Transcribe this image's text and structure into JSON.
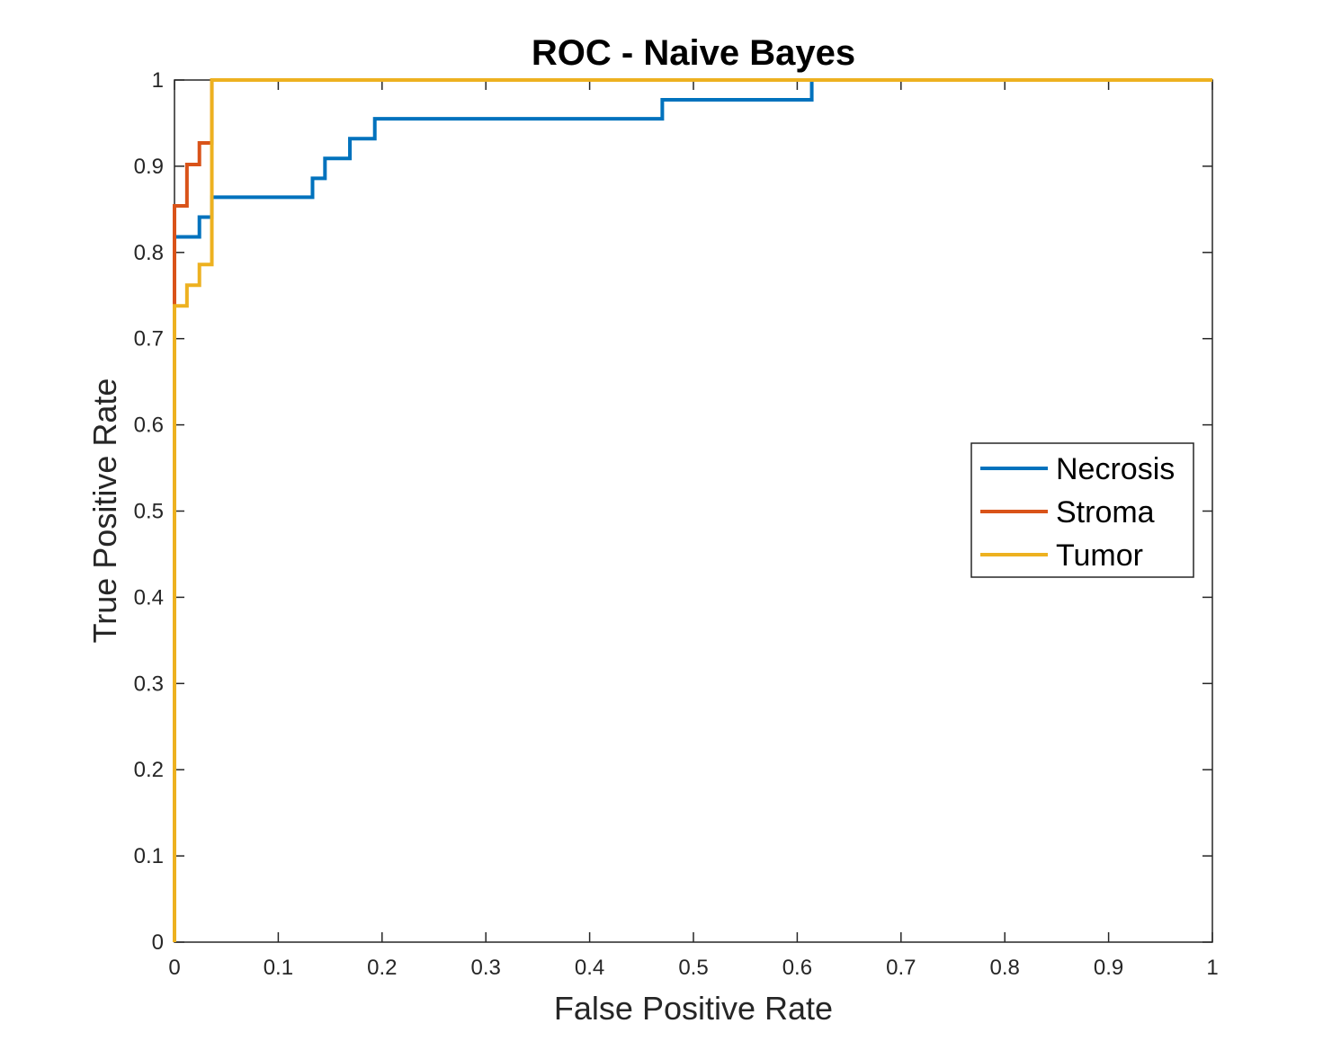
{
  "chart_data": {
    "type": "line",
    "title": "ROC - Naive Bayes",
    "xlabel": "False Positive Rate",
    "ylabel": "True Positive Rate",
    "xlim": [
      0,
      1
    ],
    "ylim": [
      0,
      1
    ],
    "xticks": [
      "0",
      "0.1",
      "0.2",
      "0.3",
      "0.4",
      "0.5",
      "0.6",
      "0.7",
      "0.8",
      "0.9",
      "1"
    ],
    "yticks": [
      "0",
      "0.1",
      "0.2",
      "0.3",
      "0.4",
      "0.5",
      "0.6",
      "0.7",
      "0.8",
      "0.9",
      "1"
    ],
    "grid": false,
    "legend_position": "right",
    "series": [
      {
        "name": "Necrosis",
        "color": "#0072BD",
        "points": [
          [
            0,
            0
          ],
          [
            0,
            0.818
          ],
          [
            0.024,
            0.818
          ],
          [
            0.024,
            0.841
          ],
          [
            0.036,
            0.841
          ],
          [
            0.036,
            0.864
          ],
          [
            0.133,
            0.864
          ],
          [
            0.133,
            0.886
          ],
          [
            0.145,
            0.886
          ],
          [
            0.145,
            0.909
          ],
          [
            0.169,
            0.909
          ],
          [
            0.169,
            0.932
          ],
          [
            0.193,
            0.932
          ],
          [
            0.193,
            0.955
          ],
          [
            0.47,
            0.955
          ],
          [
            0.47,
            0.977
          ],
          [
            0.614,
            0.977
          ],
          [
            0.614,
            1
          ],
          [
            1,
            1
          ]
        ]
      },
      {
        "name": "Stroma",
        "color": "#D95319",
        "points": [
          [
            0,
            0
          ],
          [
            0,
            0.854
          ],
          [
            0.012,
            0.854
          ],
          [
            0.012,
            0.902
          ],
          [
            0.024,
            0.902
          ],
          [
            0.024,
            0.927
          ],
          [
            0.036,
            0.927
          ],
          [
            0.036,
            1
          ],
          [
            1,
            1
          ]
        ]
      },
      {
        "name": "Tumor",
        "color": "#EDB120",
        "points": [
          [
            0,
            0
          ],
          [
            0,
            0.738
          ],
          [
            0.012,
            0.738
          ],
          [
            0.012,
            0.762
          ],
          [
            0.024,
            0.762
          ],
          [
            0.024,
            0.786
          ],
          [
            0.036,
            0.786
          ],
          [
            0.036,
            1
          ],
          [
            1,
            1
          ]
        ]
      }
    ]
  }
}
